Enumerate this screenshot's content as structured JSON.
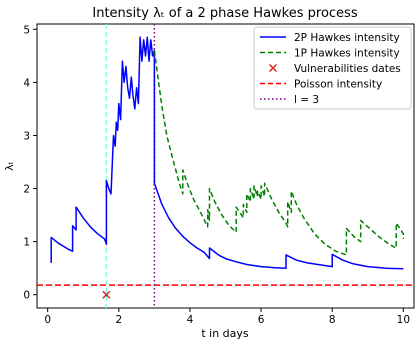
{
  "chart_data": {
    "type": "line",
    "title": "Intensity λₜ of a 2 phase Hawkes process",
    "xlabel": "t in days",
    "ylabel": "λₜ",
    "xlim": [
      -0.3,
      10.3
    ],
    "ylim": [
      -0.25,
      5.1
    ],
    "xticks": [
      0,
      2,
      4,
      6,
      8,
      10
    ],
    "yticks": [
      0,
      1,
      2,
      3,
      4,
      5
    ],
    "grid": false,
    "legend_position": "top-right",
    "series": [
      {
        "name": "2P Hawkes intensity",
        "style": "solid",
        "color": "#0000ff",
        "points": [
          [
            0.1,
            0.6
          ],
          [
            0.1,
            1.08
          ],
          [
            0.3,
            0.97
          ],
          [
            0.48,
            0.9
          ],
          [
            0.6,
            0.85
          ],
          [
            0.7,
            0.82
          ],
          [
            0.7,
            1.3
          ],
          [
            0.8,
            1.22
          ],
          [
            0.8,
            1.65
          ],
          [
            1.0,
            1.45
          ],
          [
            1.2,
            1.28
          ],
          [
            1.4,
            1.15
          ],
          [
            1.6,
            1.05
          ],
          [
            1.65,
            0.95
          ],
          [
            1.65,
            2.15
          ],
          [
            1.72,
            2.0
          ],
          [
            1.78,
            1.9
          ],
          [
            1.85,
            3.0
          ],
          [
            1.9,
            2.8
          ],
          [
            1.93,
            3.25
          ],
          [
            1.97,
            3.1
          ],
          [
            2.0,
            3.6
          ],
          [
            2.05,
            3.3
          ],
          [
            2.1,
            4.4
          ],
          [
            2.15,
            4.0
          ],
          [
            2.2,
            4.3
          ],
          [
            2.25,
            3.9
          ],
          [
            2.3,
            3.7
          ],
          [
            2.35,
            4.1
          ],
          [
            2.4,
            3.75
          ],
          [
            2.45,
            3.5
          ],
          [
            2.5,
            3.9
          ],
          [
            2.55,
            3.6
          ],
          [
            2.6,
            4.85
          ],
          [
            2.65,
            4.4
          ],
          [
            2.7,
            4.8
          ],
          [
            2.75,
            4.5
          ],
          [
            2.8,
            4.85
          ],
          [
            2.85,
            4.4
          ],
          [
            2.9,
            4.8
          ],
          [
            2.95,
            4.5
          ],
          [
            3.0,
            4.6
          ],
          [
            3.0,
            2.1
          ],
          [
            3.2,
            1.72
          ],
          [
            3.4,
            1.45
          ],
          [
            3.6,
            1.25
          ],
          [
            3.8,
            1.1
          ],
          [
            4.0,
            0.98
          ],
          [
            4.2,
            0.88
          ],
          [
            4.4,
            0.8
          ],
          [
            4.55,
            0.68
          ],
          [
            4.55,
            0.88
          ],
          [
            4.8,
            0.75
          ],
          [
            5.0,
            0.68
          ],
          [
            5.3,
            0.62
          ],
          [
            5.6,
            0.57
          ],
          [
            6.0,
            0.53
          ],
          [
            6.4,
            0.51
          ],
          [
            6.7,
            0.5
          ],
          [
            6.7,
            0.75
          ],
          [
            7.0,
            0.65
          ],
          [
            7.3,
            0.6
          ],
          [
            7.6,
            0.57
          ],
          [
            8.0,
            0.53
          ],
          [
            8.0,
            0.76
          ],
          [
            8.3,
            0.65
          ],
          [
            8.6,
            0.58
          ],
          [
            9.0,
            0.53
          ],
          [
            9.5,
            0.5
          ],
          [
            10.0,
            0.49
          ]
        ]
      },
      {
        "name": "1P Hawkes intensity",
        "style": "dashed",
        "color": "#008000",
        "points": [
          [
            3.0,
            4.6
          ],
          [
            3.1,
            4.1
          ],
          [
            3.2,
            3.6
          ],
          [
            3.35,
            3.0
          ],
          [
            3.5,
            2.6
          ],
          [
            3.7,
            2.1
          ],
          [
            3.8,
            1.9
          ],
          [
            3.8,
            2.35
          ],
          [
            3.95,
            2.05
          ],
          [
            4.1,
            1.8
          ],
          [
            4.3,
            1.55
          ],
          [
            4.5,
            1.28
          ],
          [
            4.5,
            1.6
          ],
          [
            4.55,
            1.4
          ],
          [
            4.55,
            2.0
          ],
          [
            4.7,
            1.75
          ],
          [
            4.9,
            1.5
          ],
          [
            5.1,
            1.3
          ],
          [
            5.3,
            1.18
          ],
          [
            5.3,
            1.65
          ],
          [
            5.5,
            1.45
          ],
          [
            5.5,
            1.7
          ],
          [
            5.6,
            1.55
          ],
          [
            5.6,
            1.9
          ],
          [
            5.7,
            1.75
          ],
          [
            5.7,
            2.0
          ],
          [
            5.8,
            1.8
          ],
          [
            5.8,
            2.05
          ],
          [
            5.9,
            1.85
          ],
          [
            5.9,
            1.95
          ],
          [
            6.0,
            1.8
          ],
          [
            6.0,
            2.05
          ],
          [
            6.1,
            1.85
          ],
          [
            6.1,
            2.1
          ],
          [
            6.3,
            1.8
          ],
          [
            6.5,
            1.55
          ],
          [
            6.7,
            1.35
          ],
          [
            6.75,
            1.28
          ],
          [
            6.75,
            1.75
          ],
          [
            6.85,
            1.55
          ],
          [
            6.85,
            1.95
          ],
          [
            7.0,
            1.7
          ],
          [
            7.2,
            1.45
          ],
          [
            7.5,
            1.15
          ],
          [
            7.8,
            0.95
          ],
          [
            8.1,
            0.82
          ],
          [
            8.4,
            0.75
          ],
          [
            8.4,
            1.25
          ],
          [
            8.6,
            1.1
          ],
          [
            8.8,
            1.0
          ],
          [
            8.8,
            1.4
          ],
          [
            9.0,
            1.28
          ],
          [
            9.3,
            1.1
          ],
          [
            9.6,
            0.95
          ],
          [
            9.8,
            0.88
          ],
          [
            9.8,
            1.35
          ],
          [
            10.0,
            1.15
          ],
          [
            10.0,
            1.05
          ]
        ]
      }
    ],
    "vulnerabilities": {
      "name": "Vulnerabilities dates",
      "marker": "x",
      "color": "#d62728",
      "points": [
        [
          1.65,
          0.0
        ]
      ]
    },
    "poisson": {
      "name": "Poisson intensity",
      "value": 0.18,
      "style": "dashed",
      "color": "#ff0000"
    },
    "vlines": [
      {
        "name": "l = 3",
        "x": 3.0,
        "style": "dotted",
        "color": "#800080"
      },
      {
        "name": "",
        "x": 1.65,
        "style": "dashed",
        "color": "#7fffd4"
      }
    ],
    "legend": [
      "2P Hawkes intensity",
      "1P Hawkes intensity",
      "Vulnerabilities dates",
      "Poisson intensity",
      "l = 3"
    ]
  }
}
